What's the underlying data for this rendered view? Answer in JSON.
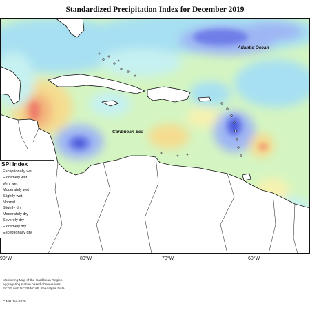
{
  "title": "Standardized Precipitation Index for December 2019",
  "labels": {
    "atlantic": "Atlantic Ocean",
    "caribbean": "Caribbean Sea"
  },
  "legend": {
    "title": "SPI Index",
    "items": [
      {
        "label": "Exceptionally wet",
        "color": "#3d4fd8"
      },
      {
        "label": "Extremely wet",
        "color": "#6f7fe8"
      },
      {
        "label": "Very wet",
        "color": "#9fb6f4"
      },
      {
        "label": "Moderately wet",
        "color": "#a7e0f2"
      },
      {
        "label": "Slightly wet",
        "color": "#c6f1f1"
      },
      {
        "label": "Normal",
        "color": "#d4f5c2"
      },
      {
        "label": "Slightly dry",
        "color": "#f6f2b0"
      },
      {
        "label": "Moderately dry",
        "color": "#f5dc8f"
      },
      {
        "label": "Severely dry",
        "color": "#f3b07a"
      },
      {
        "label": "Extremely dry",
        "color": "#ee7f6d"
      },
      {
        "label": "Exceptionally dry",
        "color": "#d94b4b"
      }
    ]
  },
  "longitudes": [
    "90°W",
    "80°W",
    "70°W",
    "60°W"
  ],
  "credits": [
    "Monitoring Map of the Caribbean Region.",
    "aggregating station based observations,",
    "ECDF, with NCEP/NCAR Reanalysis Data."
  ],
  "copyright": "CIMH Jan-2020"
}
